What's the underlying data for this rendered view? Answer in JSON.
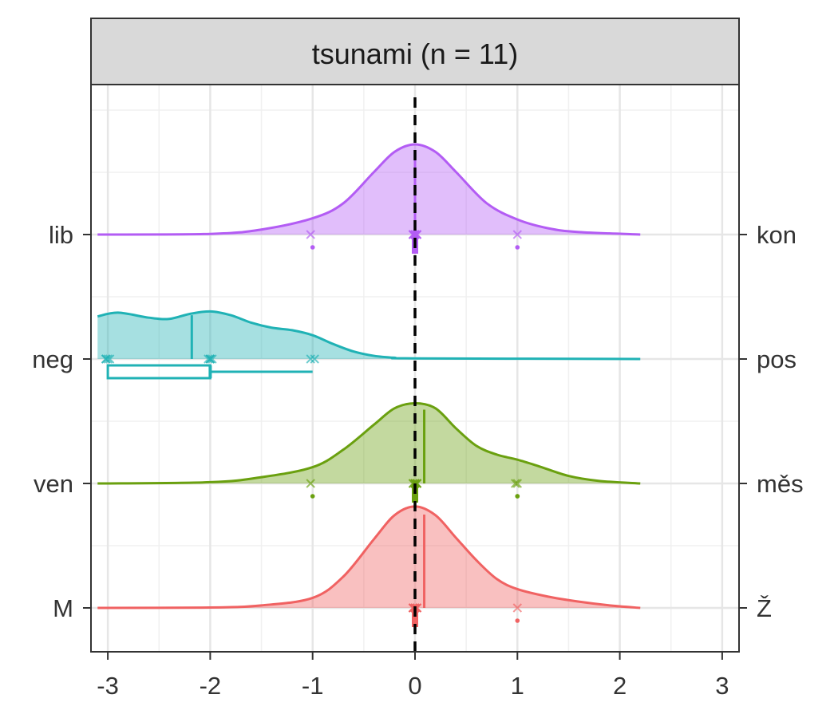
{
  "chart_data": {
    "type": "density",
    "title": "tsunami (n = 11)",
    "xlabel": "",
    "ylabel": "",
    "xlim": [
      -3.1,
      3.1
    ],
    "x_ticks": [
      "-3",
      "-2",
      "-1",
      "0",
      "1",
      "2",
      "3"
    ],
    "reference_line_x": 0,
    "grid": true,
    "series": [
      {
        "left_label": "lib",
        "right_label": "kon",
        "color": "#B35CF4",
        "mean": 0,
        "density_peak": 0.72,
        "density": [
          [
            -3.1,
            0
          ],
          [
            -2,
            0.005
          ],
          [
            -1.5,
            0.04
          ],
          [
            -1,
            0.13
          ],
          [
            -0.7,
            0.25
          ],
          [
            -0.4,
            0.5
          ],
          [
            -0.2,
            0.66
          ],
          [
            0,
            0.72
          ],
          [
            0.2,
            0.66
          ],
          [
            0.4,
            0.5
          ],
          [
            0.7,
            0.25
          ],
          [
            1,
            0.12
          ],
          [
            1.3,
            0.05
          ],
          [
            1.6,
            0.02
          ],
          [
            2.2,
            0
          ]
        ],
        "points": [
          -1,
          0,
          0,
          0,
          0,
          0,
          0,
          0,
          0,
          0,
          1
        ],
        "box": null
      },
      {
        "left_label": "neg",
        "right_label": "pos",
        "color": "#20B2B5",
        "mean": -2.18,
        "density_peak": 0.38,
        "density": [
          [
            -3.1,
            0.34
          ],
          [
            -2.9,
            0.37
          ],
          [
            -2.6,
            0.33
          ],
          [
            -2.4,
            0.32
          ],
          [
            -2.2,
            0.36
          ],
          [
            -2,
            0.38
          ],
          [
            -1.8,
            0.35
          ],
          [
            -1.6,
            0.29
          ],
          [
            -1.4,
            0.25
          ],
          [
            -1.2,
            0.23
          ],
          [
            -1,
            0.19
          ],
          [
            -0.8,
            0.12
          ],
          [
            -0.6,
            0.06
          ],
          [
            -0.4,
            0.025
          ],
          [
            -0.2,
            0.01
          ],
          [
            0,
            0.005
          ],
          [
            2.2,
            0
          ]
        ],
        "points": [
          -3,
          -3,
          -3,
          -3,
          -2,
          -2,
          -2,
          -2,
          -1,
          -1,
          -2
        ],
        "box": {
          "min": -3,
          "q1": -3,
          "median": -2,
          "q3": -2,
          "max": -1
        }
      },
      {
        "left_label": "ven",
        "right_label": "měs",
        "color": "#6AA00F",
        "mean": 0.09,
        "density_peak": 0.64,
        "density": [
          [
            -3.1,
            0
          ],
          [
            -2,
            0.01
          ],
          [
            -1.5,
            0.05
          ],
          [
            -1,
            0.13
          ],
          [
            -0.7,
            0.27
          ],
          [
            -0.4,
            0.47
          ],
          [
            -0.2,
            0.6
          ],
          [
            0,
            0.64
          ],
          [
            0.2,
            0.6
          ],
          [
            0.4,
            0.44
          ],
          [
            0.6,
            0.3
          ],
          [
            0.8,
            0.23
          ],
          [
            1,
            0.19
          ],
          [
            1.2,
            0.14
          ],
          [
            1.5,
            0.06
          ],
          [
            1.8,
            0.02
          ],
          [
            2.2,
            0
          ]
        ],
        "points": [
          -1,
          0,
          0,
          0,
          0,
          0,
          0,
          0,
          0,
          1,
          1
        ],
        "box": null
      },
      {
        "left_label": "M",
        "right_label": "Ž",
        "color": "#F06262",
        "mean": 0.09,
        "density_peak": 0.81,
        "density": [
          [
            -3.1,
            0
          ],
          [
            -2,
            0.003
          ],
          [
            -1.5,
            0.02
          ],
          [
            -1,
            0.08
          ],
          [
            -0.7,
            0.25
          ],
          [
            -0.4,
            0.55
          ],
          [
            -0.2,
            0.74
          ],
          [
            0,
            0.81
          ],
          [
            0.2,
            0.74
          ],
          [
            0.4,
            0.56
          ],
          [
            0.6,
            0.38
          ],
          [
            0.8,
            0.23
          ],
          [
            1,
            0.15
          ],
          [
            1.3,
            0.09
          ],
          [
            1.6,
            0.05
          ],
          [
            1.9,
            0.02
          ],
          [
            2.2,
            0
          ]
        ],
        "points": [
          0,
          0,
          0,
          0,
          0,
          0,
          0,
          0,
          0,
          0,
          1
        ],
        "box": null
      }
    ]
  }
}
